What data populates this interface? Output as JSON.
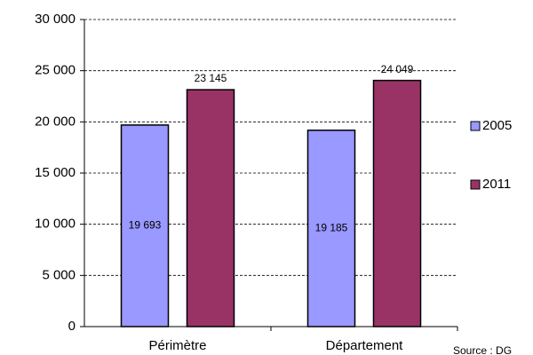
{
  "chart_data": {
    "type": "bar",
    "categories": [
      "Périmètre",
      "Département"
    ],
    "series": [
      {
        "name": "2005",
        "color": "#9999ff",
        "values": [
          19693,
          19185
        ],
        "value_labels": [
          "19 693",
          "19 185"
        ]
      },
      {
        "name": "2011",
        "color": "#993366",
        "values": [
          23145,
          24049
        ],
        "value_labels": [
          "23 145",
          "24 049"
        ]
      }
    ],
    "ylim": [
      0,
      30000
    ],
    "yticks": [
      {
        "value": 0,
        "label": "0"
      },
      {
        "value": 5000,
        "label": "5 000"
      },
      {
        "value": 10000,
        "label": "10 000"
      },
      {
        "value": 15000,
        "label": "15 000"
      },
      {
        "value": 20000,
        "label": "20 000"
      },
      {
        "value": 25000,
        "label": "25 000"
      },
      {
        "value": 30000,
        "label": "30 000"
      }
    ],
    "grid": true,
    "legend": "right",
    "source": "Source : DG"
  }
}
